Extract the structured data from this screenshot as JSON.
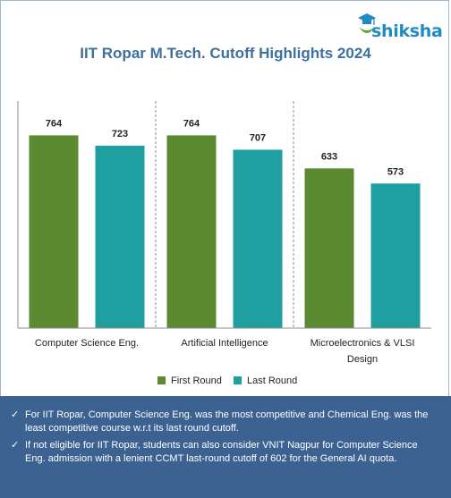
{
  "brand": {
    "name": "shiksha",
    "logo_icon": "graduation-cap-icon",
    "color": "#1e8bc3"
  },
  "chart_data": {
    "type": "bar",
    "title": "IIT Ropar M.Tech. Cutoff Highlights 2024",
    "categories": [
      "Computer Science Eng.",
      "Artificial Intelligence",
      "Microelectronics & VLSI Design"
    ],
    "series": [
      {
        "name": "First Round",
        "values": [
          764,
          764,
          633
        ],
        "color": "#5b8a33"
      },
      {
        "name": "Last Round",
        "values": [
          723,
          707,
          573
        ],
        "color": "#1f9f9f"
      }
    ],
    "ylim": [
      0,
      900
    ],
    "grid": false,
    "legend": "bottom",
    "data_labels": true
  },
  "notes": [
    "For IIT Ropar, Computer Science Eng. was the most competitive and Chemical Eng. was the least competitive course w.r.t its last round cutoff.",
    "If not eligible for IIT Ropar, students can also consider VNIT Nagpur for Computer Science Eng. admission with a lenient CCMT last-round cutoff of 602 for the General AI quota."
  ]
}
